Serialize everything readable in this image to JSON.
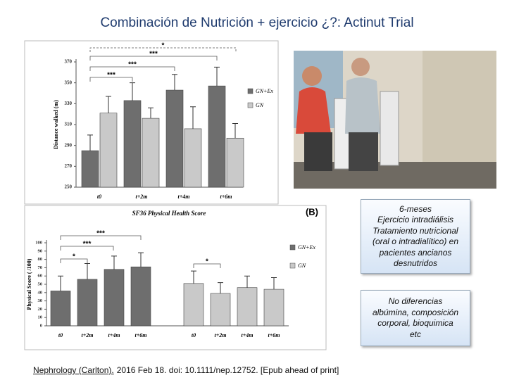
{
  "title": "Combinación de Nutrición + ejercicio ¿?: Actinut Trial",
  "chart_data": [
    {
      "type": "bar",
      "y_label": "Distance walked (m)",
      "categories": [
        "t0",
        "t+2m",
        "t+4m",
        "t+6m"
      ],
      "series": [
        {
          "name": "GN+Ex",
          "color": "#6e6e6e",
          "values": [
            285,
            333,
            343,
            347
          ],
          "errors": [
            15,
            17,
            15,
            18
          ]
        },
        {
          "name": "GN",
          "color": "#c9c9c9",
          "values": [
            321,
            316,
            306,
            297
          ],
          "errors": [
            16,
            10,
            21,
            14
          ]
        }
      ],
      "ylim": [
        250,
        370
      ],
      "yticks": [
        250,
        270,
        290,
        310,
        330,
        350,
        370
      ],
      "annotations": [
        "*",
        "***",
        "***",
        "***"
      ]
    },
    {
      "type": "bar",
      "title": "SF36 Physical Health Score",
      "panel_label": "(B)",
      "y_label": "Physical Score ( /100)",
      "categories": [
        "t0",
        "t+2m",
        "t+4m",
        "t+6m",
        "t0",
        "t+2m",
        "t+4m",
        "t+6m"
      ],
      "series": [
        {
          "name": "GN+Ex",
          "color": "#6e6e6e",
          "values": [
            42,
            56,
            68,
            71,
            null,
            null,
            null,
            null
          ],
          "errors": [
            18,
            19,
            16,
            17,
            null,
            null,
            null,
            null
          ]
        },
        {
          "name": "GN",
          "color": "#c9c9c9",
          "values": [
            null,
            null,
            null,
            null,
            51,
            39,
            46,
            44
          ],
          "errors": [
            null,
            null,
            null,
            null,
            15,
            13,
            14,
            14
          ]
        }
      ],
      "ylim": [
        0,
        100
      ],
      "yticks": [
        0,
        10,
        20,
        30,
        40,
        50,
        60,
        70,
        80,
        90,
        100
      ],
      "annotations": [
        "***",
        "***",
        "*",
        "*"
      ]
    }
  ],
  "boxes": [
    {
      "lines": [
        "6-meses",
        "Ejercicio intradiálisis",
        "Tratamiento nutricional",
        "(oral o intradialítico) en",
        "pacientes ancianos",
        "desnutridos"
      ]
    },
    {
      "lines": [
        "No diferencias",
        "albúmina, composición",
        "corporal, bioquimica",
        "etc"
      ]
    }
  ],
  "citation": {
    "source": "Nephrology (Carlton).",
    "rest": "2016 Feb 18. doi: 10.1111/nep.12752. [Epub ahead of print]"
  }
}
